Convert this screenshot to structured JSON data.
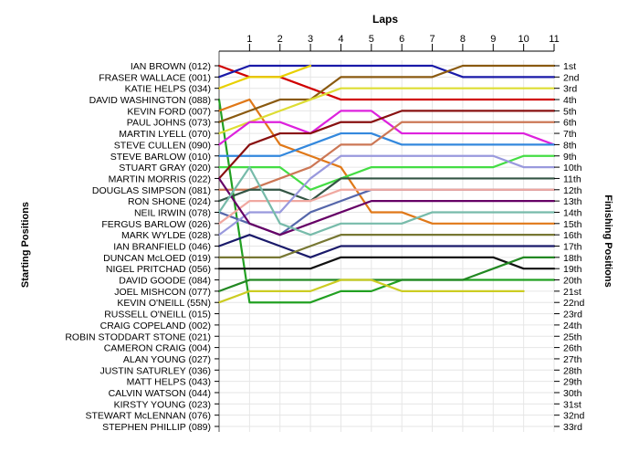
{
  "chart_data": {
    "type": "line",
    "title": "",
    "xlabel": "Laps",
    "ylabel_left": "Starting Positions",
    "ylabel_right": "Finishing Positions",
    "x_ticks": [
      1,
      2,
      3,
      4,
      5,
      6,
      7,
      8,
      9,
      10,
      11
    ],
    "xlim": [
      0,
      11
    ],
    "ylim": [
      1,
      33
    ],
    "y_inverted": true,
    "grid": true,
    "legend": "none",
    "starting_labels": [
      "IAN BROWN (012)",
      "FRASER WALLACE (001)",
      "KATIE HELPS (034)",
      "DAVID WASHINGTON (088)",
      "KEVIN FORD (007)",
      "PAUL JOHNS (073)",
      "MARTIN LYELL (070)",
      "STEVE CULLEN (090)",
      "STEVE BARLOW (010)",
      "STUART GRAY (020)",
      "MARTIN MORRIS (022)",
      "DOUGLAS SIMPSON (081)",
      "RON SHONE (024)",
      "NEIL IRWIN (078)",
      "FERGUS BARLOW (026)",
      "MARK WYLDE (028)",
      "IAN BRANFIELD (046)",
      "DUNCAN McLOED (019)",
      "NIGEL PRITCHAD (056)",
      "DAVID GOODE (084)",
      "JOEL MISHCON (077)",
      "KEVIN O'NEILL (55N)",
      "RUSSELL O'NEILL (015)",
      "CRAIG COPELAND (002)",
      "ROBIN STODDART STONE (021)",
      "CAMERON CRAIG (004)",
      "ALAN YOUNG (027)",
      "JUSTIN SATURLEY (036)",
      "MATT HELPS (043)",
      "CALVIN WATSON (044)",
      "KIRSTY YOUNG (023)",
      "STEWART McLENNAN (076)",
      "STEPHEN PHILLIP (089)"
    ],
    "finishing_labels": [
      "1st",
      "2nd",
      "3rd",
      "4th",
      "5th",
      "6th",
      "7th",
      "8th",
      "9th",
      "10th",
      "11th",
      "12th",
      "13th",
      "14th",
      "15th",
      "16th",
      "17th",
      "18th",
      "19th",
      "20th",
      "21st",
      "22nd",
      "23rd",
      "24th",
      "25th",
      "26th",
      "27th",
      "28th",
      "29th",
      "30th",
      "31st",
      "32nd",
      "33rd"
    ],
    "series": [
      {
        "color": "#d00000",
        "x": [
          0,
          1,
          2,
          3,
          4,
          5,
          6,
          7,
          8,
          9,
          10,
          11
        ],
        "y": [
          1,
          2,
          2,
          3,
          4,
          4,
          4,
          4,
          4,
          4,
          4,
          4
        ]
      },
      {
        "color": "#1a1aa8",
        "x": [
          0,
          1,
          2,
          3,
          4,
          5,
          6,
          7,
          8,
          9,
          10,
          11
        ],
        "y": [
          2,
          1,
          1,
          1,
          1,
          1,
          1,
          1,
          2,
          2,
          2,
          2
        ]
      },
      {
        "color": "#e8d000",
        "x": [
          0,
          1,
          2,
          3
        ],
        "y": [
          3,
          2,
          2,
          1
        ]
      },
      {
        "color": "#22a022",
        "x": [
          0,
          1,
          2,
          3,
          4,
          5,
          6,
          7,
          8,
          9,
          10,
          11
        ],
        "y": [
          4,
          22,
          22,
          22,
          21,
          21,
          20,
          20,
          20,
          20,
          20,
          20
        ]
      },
      {
        "color": "#e07818",
        "x": [
          0,
          1,
          2,
          3,
          4,
          5,
          6,
          7,
          8,
          9,
          10,
          11
        ],
        "y": [
          5,
          4,
          8,
          9,
          10,
          14,
          14,
          15,
          15,
          15,
          15,
          15
        ]
      },
      {
        "color": "#8a5a10",
        "x": [
          0,
          1,
          2,
          3,
          4,
          5,
          6,
          7,
          8,
          9,
          10,
          11
        ],
        "y": [
          6,
          5,
          4,
          4,
          2,
          2,
          2,
          2,
          1,
          1,
          1,
          1
        ]
      },
      {
        "color": "#dddd33",
        "x": [
          0,
          1,
          2,
          3,
          4,
          5,
          6,
          7,
          8,
          9,
          10,
          11
        ],
        "y": [
          7,
          6,
          5,
          4,
          3,
          3,
          3,
          3,
          3,
          3,
          3,
          3
        ]
      },
      {
        "color": "#dd22dd",
        "x": [
          0,
          1,
          2,
          3,
          4,
          5,
          6,
          7,
          8,
          9,
          10,
          11
        ],
        "y": [
          8,
          6,
          6,
          7,
          5,
          5,
          7,
          7,
          7,
          7,
          7,
          8
        ]
      },
      {
        "color": "#3388dd",
        "x": [
          0,
          1,
          2,
          3,
          4,
          5,
          6,
          7,
          8,
          9,
          10,
          11
        ],
        "y": [
          9,
          9,
          9,
          8,
          7,
          7,
          8,
          8,
          8,
          8,
          8,
          8
        ]
      },
      {
        "color": "#44dd44",
        "x": [
          0,
          1,
          2,
          3,
          4,
          5,
          6,
          7,
          8,
          9,
          10,
          11
        ],
        "y": [
          10,
          10,
          10,
          12,
          11,
          10,
          10,
          10,
          10,
          10,
          9,
          9
        ]
      },
      {
        "color": "#881010",
        "x": [
          0,
          1,
          2,
          3,
          4,
          5,
          6,
          7,
          8,
          9,
          10,
          11
        ],
        "y": [
          11,
          8,
          7,
          7,
          6,
          6,
          5,
          5,
          5,
          5,
          5,
          5
        ]
      },
      {
        "color": "#cc7755",
        "x": [
          0,
          1,
          2,
          3,
          4,
          5,
          6,
          7,
          8,
          9,
          10,
          11
        ],
        "y": [
          12,
          12,
          11,
          10,
          8,
          8,
          6,
          6,
          6,
          6,
          6,
          6
        ]
      },
      {
        "color": "#335544",
        "x": [
          0,
          1,
          2,
          3,
          4,
          5,
          6,
          7,
          8,
          9,
          10,
          11
        ],
        "y": [
          13,
          12,
          12,
          13,
          11,
          11,
          11,
          11,
          11,
          11,
          11,
          11
        ]
      },
      {
        "color": "#5566aa",
        "x": [
          0,
          1,
          2,
          3,
          4,
          5,
          6,
          7,
          8,
          9,
          10,
          11
        ],
        "y": [
          14,
          15,
          16,
          14,
          13,
          12,
          12,
          12,
          12,
          12,
          12,
          12
        ]
      },
      {
        "color": "#f0a8a0",
        "x": [
          0,
          1,
          2,
          3,
          4,
          5,
          6,
          7,
          8,
          9,
          10,
          11
        ],
        "y": [
          15,
          13,
          13,
          13,
          12,
          12,
          12,
          12,
          12,
          12,
          12,
          12
        ]
      },
      {
        "color": "#9999dd",
        "x": [
          0,
          1,
          2,
          3,
          4,
          5,
          6,
          7,
          8,
          9,
          10,
          11
        ],
        "y": [
          16,
          14,
          14,
          11,
          9,
          9,
          9,
          9,
          9,
          9,
          10,
          10
        ]
      },
      {
        "color": "#1a1a6a",
        "x": [
          0,
          1,
          2,
          3,
          4,
          5,
          6,
          7,
          8,
          9,
          10,
          11
        ],
        "y": [
          17,
          16,
          17,
          18,
          17,
          17,
          17,
          17,
          17,
          17,
          17,
          17
        ]
      },
      {
        "color": "#660066",
        "x": [
          0,
          1,
          2,
          3,
          4,
          5,
          6,
          7,
          8,
          9,
          10,
          11
        ],
        "y": [
          11,
          15,
          16,
          15,
          14,
          13,
          13,
          13,
          13,
          13,
          13,
          13
        ]
      },
      {
        "color": "#77bbaa",
        "x": [
          0,
          1,
          2,
          3,
          4,
          5,
          6,
          7,
          8,
          9,
          10,
          11
        ],
        "y": [
          14,
          10,
          15,
          16,
          15,
          15,
          15,
          14,
          14,
          14,
          14,
          14
        ]
      },
      {
        "color": "#777733",
        "x": [
          0,
          1,
          2,
          3,
          4,
          5,
          6,
          7,
          8,
          9,
          10,
          11
        ],
        "y": [
          18,
          18,
          18,
          17,
          16,
          16,
          16,
          16,
          16,
          16,
          16,
          16
        ]
      },
      {
        "color": "#111111",
        "x": [
          0,
          1,
          2,
          3,
          4,
          5,
          6,
          7,
          8,
          9,
          10,
          11
        ],
        "y": [
          19,
          19,
          19,
          19,
          18,
          18,
          18,
          18,
          18,
          18,
          19,
          19
        ]
      },
      {
        "color": "#228822",
        "x": [
          0,
          1,
          2,
          3,
          4,
          5,
          6,
          7,
          8,
          9,
          10,
          11
        ],
        "y": [
          21,
          20,
          20,
          20,
          20,
          20,
          20,
          20,
          20,
          19,
          18,
          18
        ]
      },
      {
        "color": "#cccc22",
        "x": [
          0,
          1,
          2,
          3,
          4,
          5,
          6,
          7,
          8,
          9,
          10
        ],
        "y": [
          22,
          21,
          21,
          21,
          20,
          20,
          21,
          21,
          21,
          21,
          21
        ]
      }
    ]
  }
}
